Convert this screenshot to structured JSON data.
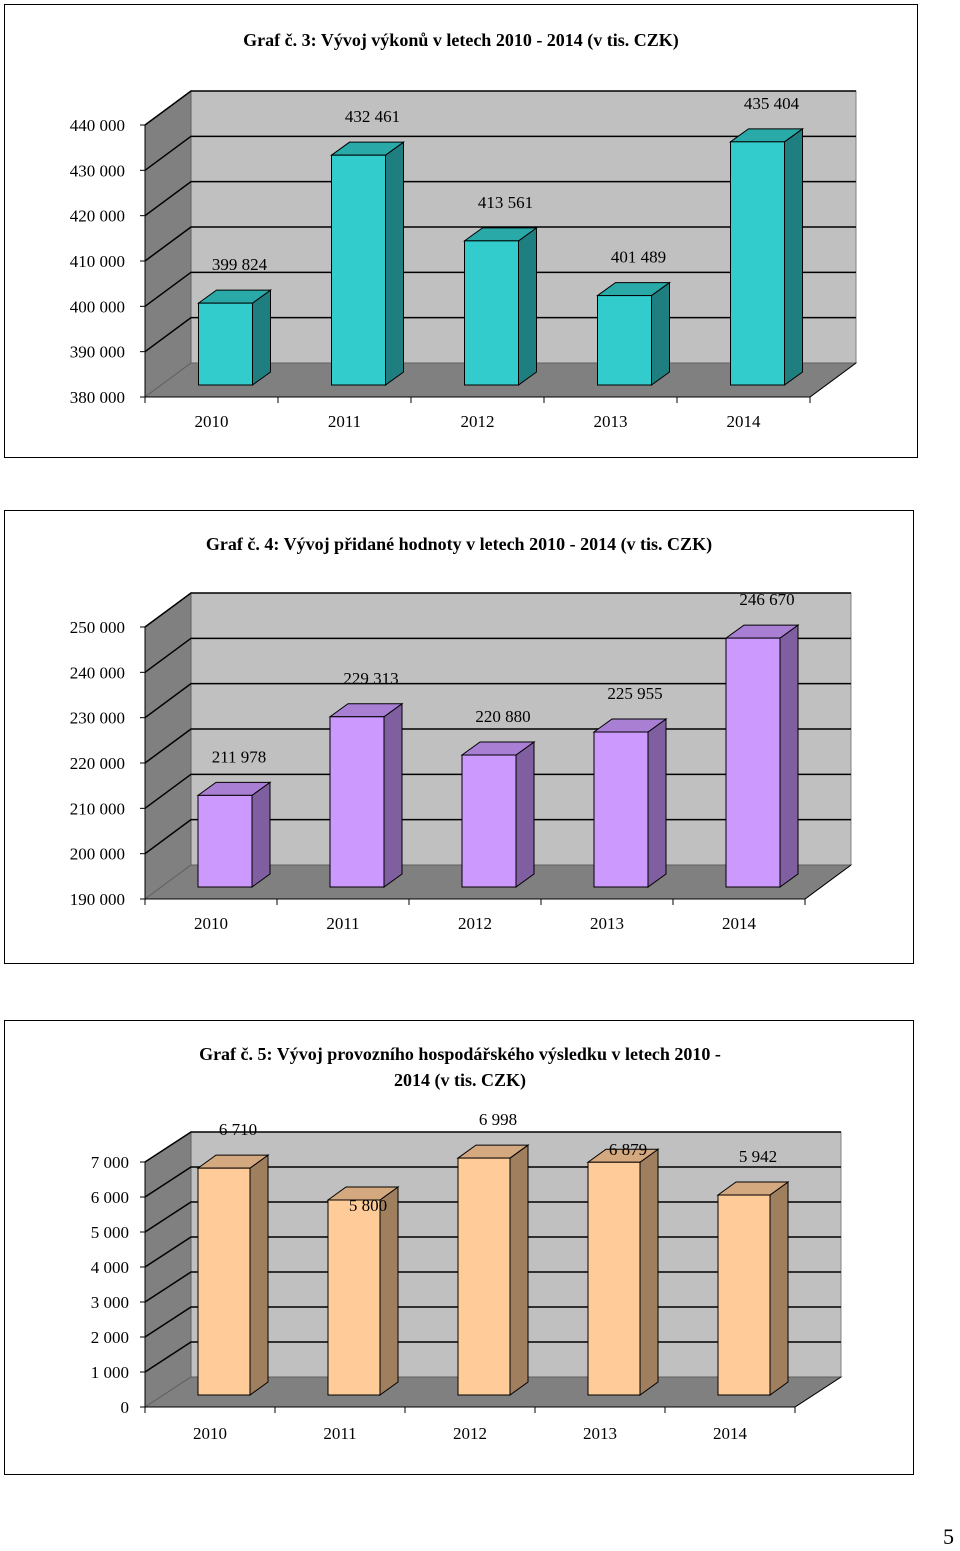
{
  "page_number": "5",
  "chart_data": [
    {
      "type": "bar",
      "title": "Graf č. 3: Vývoj výkonů v letech 2010 - 2014 (v tis. CZK)",
      "categories": [
        "2010",
        "2011",
        "2012",
        "2013",
        "2014"
      ],
      "values": [
        399824,
        432461,
        413561,
        401489,
        435404
      ],
      "data_labels": [
        "399 824",
        "432 461",
        "413 561",
        "401 489",
        "435 404"
      ],
      "yticks": [
        "380 000",
        "390 000",
        "400 000",
        "410 000",
        "420 000",
        "430 000",
        "440 000"
      ],
      "ylim": [
        380000,
        440000
      ],
      "grid": true,
      "colors": {
        "front": "#33cccc",
        "side": "#1f7f80",
        "top": "#2aa9a9"
      }
    },
    {
      "type": "bar",
      "title": "Graf č. 4: Vývoj přidané hodnoty v letech 2010 - 2014 (v tis. CZK)",
      "categories": [
        "2010",
        "2011",
        "2012",
        "2013",
        "2014"
      ],
      "values": [
        211978,
        229313,
        220880,
        225955,
        246670
      ],
      "data_labels": [
        "211 978",
        "229 313",
        "220 880",
        "225 955",
        "246 670"
      ],
      "yticks": [
        "190 000",
        "200 000",
        "210 000",
        "220 000",
        "230 000",
        "240 000",
        "250 000"
      ],
      "ylim": [
        190000,
        250000
      ],
      "grid": true,
      "colors": {
        "front": "#cc99ff",
        "side": "#7f5fa0",
        "top": "#a97fd4"
      }
    },
    {
      "type": "bar",
      "title": "Graf č. 5: Vývoj provozního hospodářského výsledku v letech 2010 - 2014 (v tis. CZK)",
      "categories": [
        "2010",
        "2011",
        "2012",
        "2013",
        "2014"
      ],
      "values": [
        6710,
        5800,
        6998,
        6879,
        5942
      ],
      "data_labels": [
        "6 710",
        "5 800",
        "6 998",
        "6 879",
        "5 942"
      ],
      "yticks": [
        "0",
        "1 000",
        "2 000",
        "3 000",
        "4 000",
        "5 000",
        "6 000",
        "7 000"
      ],
      "ylim": [
        0,
        7000
      ],
      "grid": true,
      "colors": {
        "front": "#ffcc99",
        "side": "#a07f5f",
        "top": "#d4a97f"
      }
    }
  ]
}
